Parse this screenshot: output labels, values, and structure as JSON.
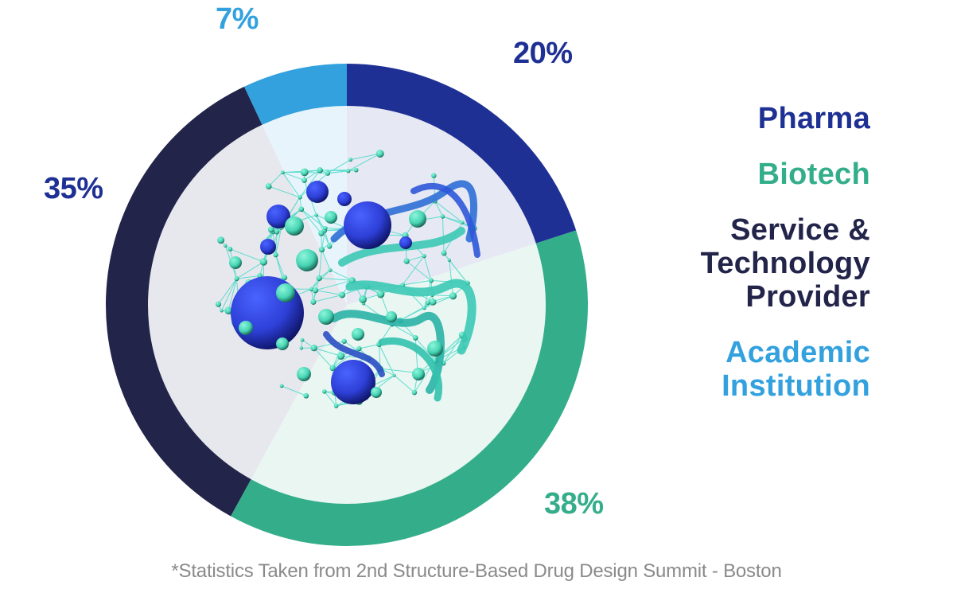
{
  "chart_data": {
    "type": "pie",
    "variant": "donut",
    "title": "",
    "start_angle_deg": 0,
    "direction": "clockwise",
    "categories": [
      "Pharma",
      "Biotech",
      "Service & Technology Provider",
      "Academic Institution"
    ],
    "values": [
      20,
      38,
      35,
      7
    ],
    "value_labels": [
      "20%",
      "38%",
      "35%",
      "7%"
    ],
    "colors": [
      "#1f3094",
      "#34ae8a",
      "#22244a",
      "#32a1de"
    ],
    "inner_fill_colors": [
      "#e6e9f3",
      "#e9f6f2",
      "#e7e8ee",
      "#e8f4fb"
    ],
    "legend_position": "right",
    "center_image": "molecular-protein-illustration"
  },
  "labels": {
    "pharma_pct": "20%",
    "biotech_pct": "38%",
    "service_pct": "35%",
    "academic_pct": "7%"
  },
  "label_colors": {
    "pharma_pct": "#1f3094",
    "biotech_pct": "#34ae8a",
    "service_pct": "#1f3094",
    "academic_pct": "#32a1de"
  },
  "legend": {
    "items": [
      {
        "lines": [
          "Pharma"
        ],
        "color": "#1f3094"
      },
      {
        "lines": [
          "Biotech"
        ],
        "color": "#34ae8a"
      },
      {
        "lines": [
          "Service &",
          "Technology",
          "Provider"
        ],
        "color": "#22244a"
      },
      {
        "lines": [
          "Academic",
          "Institution"
        ],
        "color": "#32a1de"
      }
    ]
  },
  "footnote": "*Statistics Taken from 2nd Structure-Based Drug Design Summit - Boston"
}
